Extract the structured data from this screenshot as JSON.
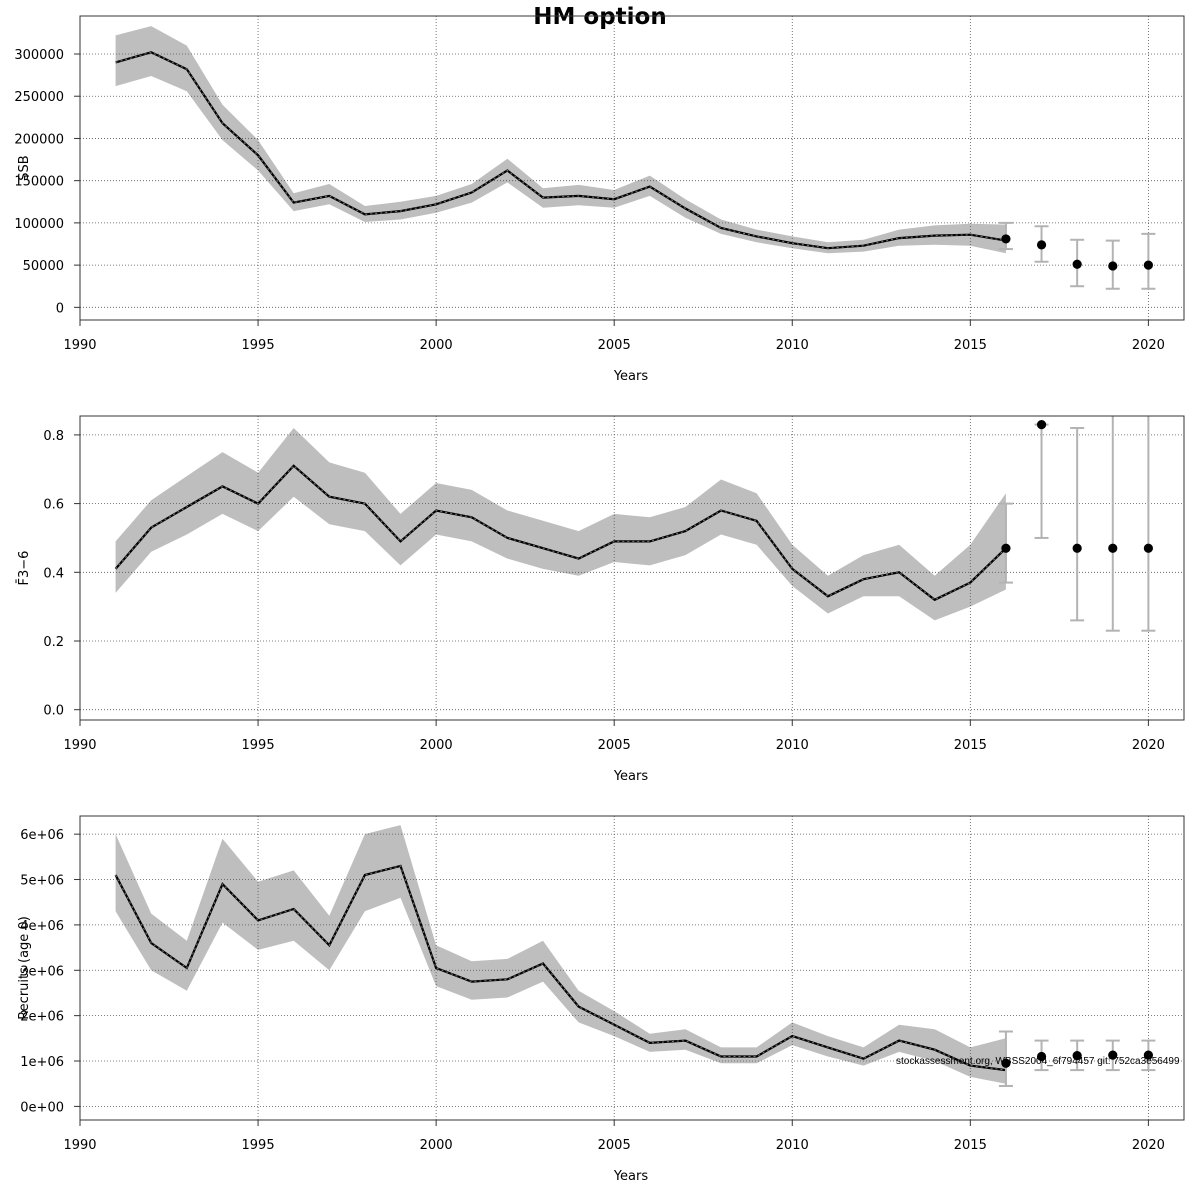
{
  "title": "HM option",
  "watermark": "stockassessment.org, WBSS2004_6f794457 git: 752ca3e56499",
  "colors": {
    "band": "#bebebe",
    "line": "#000000",
    "grid": "#555555",
    "errorbar": "#b3b3b3",
    "point": "#000000"
  },
  "chart_data": [
    {
      "type": "line",
      "panel": "ssb",
      "ylabel": "SSB",
      "xlabel": "Years",
      "xlim": [
        1990,
        2021
      ],
      "ylim": [
        -15000,
        345000
      ],
      "xticks": [
        1990,
        1995,
        2000,
        2005,
        2010,
        2015,
        2020
      ],
      "yticks": [
        0,
        50000,
        100000,
        150000,
        200000,
        250000,
        300000
      ],
      "ytick_labels": [
        "0",
        "50000",
        "100000",
        "150000",
        "200000",
        "250000",
        "300000"
      ],
      "grid": true,
      "years": [
        1991,
        1992,
        1993,
        1994,
        1995,
        1996,
        1997,
        1998,
        1999,
        2000,
        2001,
        2002,
        2003,
        2004,
        2005,
        2006,
        2007,
        2008,
        2009,
        2010,
        2011,
        2012,
        2013,
        2014,
        2015,
        2016
      ],
      "estimate": [
        290000,
        302000,
        282000,
        218000,
        180000,
        124000,
        132000,
        110000,
        114000,
        122000,
        136000,
        162000,
        130000,
        132000,
        128000,
        143000,
        117000,
        94000,
        84000,
        76000,
        70000,
        73000,
        82000,
        85000,
        86000,
        79000
      ],
      "lower": [
        262000,
        274000,
        256000,
        198000,
        162000,
        114000,
        122000,
        101000,
        104000,
        112000,
        124000,
        148000,
        118000,
        121000,
        118000,
        132000,
        106000,
        87000,
        77000,
        70000,
        64000,
        66000,
        73000,
        74000,
        73000,
        64000
      ],
      "upper": [
        322000,
        333000,
        310000,
        240000,
        198000,
        135000,
        146000,
        120000,
        125000,
        132000,
        146000,
        176000,
        141000,
        145000,
        139000,
        156000,
        128000,
        104000,
        92000,
        84000,
        77000,
        80000,
        92000,
        97000,
        99000,
        98000
      ],
      "forecast": {
        "years": [
          2016,
          2017,
          2018,
          2019,
          2020
        ],
        "median": [
          81000,
          74000,
          51000,
          49000,
          50000
        ],
        "lower": [
          69000,
          54000,
          25000,
          22000,
          22000
        ],
        "upper": [
          100000,
          96000,
          80000,
          79000,
          87000
        ]
      }
    },
    {
      "type": "line",
      "panel": "f",
      "ylabel": "F̄3−6",
      "xlabel": "Years",
      "xlim": [
        1990,
        2021
      ],
      "ylim": [
        -0.03,
        0.855
      ],
      "xticks": [
        1990,
        1995,
        2000,
        2005,
        2010,
        2015,
        2020
      ],
      "yticks": [
        0,
        0.2,
        0.4,
        0.6,
        0.8
      ],
      "ytick_labels": [
        "0.0",
        "0.2",
        "0.4",
        "0.6",
        "0.8"
      ],
      "grid": true,
      "years": [
        1991,
        1992,
        1993,
        1994,
        1995,
        1996,
        1997,
        1998,
        1999,
        2000,
        2001,
        2002,
        2003,
        2004,
        2005,
        2006,
        2007,
        2008,
        2009,
        2010,
        2011,
        2012,
        2013,
        2014,
        2015,
        2016
      ],
      "estimate": [
        0.41,
        0.53,
        0.59,
        0.65,
        0.6,
        0.71,
        0.62,
        0.6,
        0.49,
        0.58,
        0.56,
        0.5,
        0.47,
        0.44,
        0.49,
        0.49,
        0.52,
        0.58,
        0.55,
        0.41,
        0.33,
        0.38,
        0.4,
        0.32,
        0.37,
        0.47
      ],
      "lower": [
        0.34,
        0.46,
        0.51,
        0.57,
        0.52,
        0.62,
        0.54,
        0.52,
        0.42,
        0.51,
        0.49,
        0.44,
        0.41,
        0.39,
        0.43,
        0.42,
        0.45,
        0.51,
        0.48,
        0.36,
        0.28,
        0.33,
        0.33,
        0.26,
        0.3,
        0.35
      ],
      "upper": [
        0.49,
        0.61,
        0.68,
        0.75,
        0.69,
        0.82,
        0.72,
        0.69,
        0.57,
        0.66,
        0.64,
        0.58,
        0.55,
        0.52,
        0.57,
        0.56,
        0.59,
        0.67,
        0.63,
        0.48,
        0.39,
        0.45,
        0.48,
        0.39,
        0.48,
        0.63
      ],
      "forecast": {
        "years": [
          2016,
          2017,
          2018,
          2019,
          2020
        ],
        "median": [
          0.47,
          0.83,
          0.47,
          0.47,
          0.47
        ],
        "lower": [
          0.37,
          0.5,
          0.26,
          0.23,
          0.23
        ],
        "upper": [
          0.6,
          0.83,
          0.82,
          0.92,
          1.05
        ]
      }
    },
    {
      "type": "line",
      "panel": "recruits",
      "ylabel": "Recruits (age 0)",
      "xlabel": "Years",
      "xlim": [
        1990,
        2021
      ],
      "ylim": [
        -300000,
        6400000
      ],
      "xticks": [
        1990,
        1995,
        2000,
        2005,
        2010,
        2015,
        2020
      ],
      "yticks": [
        0,
        1000000,
        2000000,
        3000000,
        4000000,
        5000000,
        6000000
      ],
      "ytick_labels": [
        "0e+00",
        "1e+06",
        "2e+06",
        "3e+06",
        "4e+06",
        "5e+06",
        "6e+06"
      ],
      "grid": true,
      "years": [
        1991,
        1992,
        1993,
        1994,
        1995,
        1996,
        1997,
        1998,
        1999,
        2000,
        2001,
        2002,
        2003,
        2004,
        2005,
        2006,
        2007,
        2008,
        2009,
        2010,
        2011,
        2012,
        2013,
        2014,
        2015,
        2016
      ],
      "estimate": [
        5100000,
        3600000,
        3050000,
        4900000,
        4100000,
        4350000,
        3550000,
        5100000,
        5300000,
        3050000,
        2750000,
        2800000,
        3150000,
        2200000,
        1800000,
        1400000,
        1450000,
        1100000,
        1100000,
        1550000,
        1300000,
        1050000,
        1450000,
        1250000,
        900000,
        800000
      ],
      "lower": [
        4300000,
        3000000,
        2550000,
        4050000,
        3450000,
        3650000,
        3000000,
        4300000,
        4600000,
        2650000,
        2350000,
        2400000,
        2750000,
        1850000,
        1550000,
        1200000,
        1250000,
        950000,
        950000,
        1350000,
        1100000,
        900000,
        1200000,
        1000000,
        650000,
        500000
      ],
      "upper": [
        6000000,
        4250000,
        3650000,
        5900000,
        4950000,
        5200000,
        4200000,
        6000000,
        6200000,
        3550000,
        3200000,
        3250000,
        3650000,
        2550000,
        2100000,
        1600000,
        1700000,
        1300000,
        1300000,
        1850000,
        1550000,
        1300000,
        1800000,
        1700000,
        1300000,
        1500000
      ],
      "forecast": {
        "years": [
          2016,
          2017,
          2018,
          2019,
          2020
        ],
        "median": [
          950000,
          1100000,
          1120000,
          1130000,
          1130000
        ],
        "lower": [
          450000,
          800000,
          800000,
          800000,
          800000
        ],
        "upper": [
          1650000,
          1450000,
          1450000,
          1450000,
          1450000
        ]
      }
    }
  ]
}
